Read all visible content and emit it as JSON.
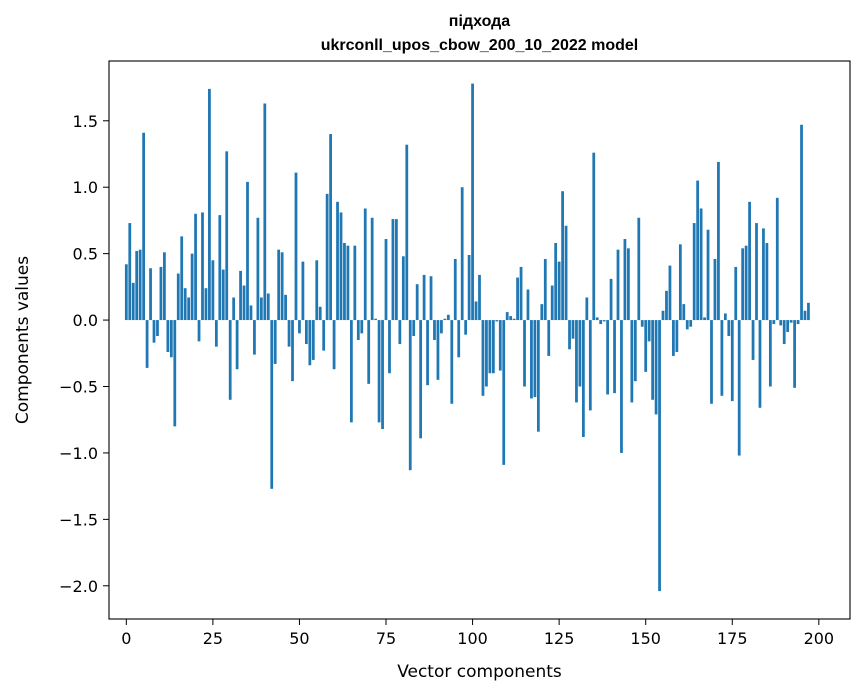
{
  "chart_data": {
    "type": "bar",
    "title": "підхода",
    "subtitle": "ukrconll_upos_cbow_200_10_2022 model",
    "xlabel": "Vector components",
    "ylabel": "Components values",
    "xlim": [
      -5,
      209
    ],
    "ylim": [
      -2.25,
      1.95
    ],
    "xticks": [
      0,
      25,
      50,
      75,
      100,
      125,
      150,
      175,
      200
    ],
    "yticks": [
      -2.0,
      -1.5,
      -1.0,
      -0.5,
      0.0,
      0.5,
      1.0,
      1.5
    ],
    "ytick_labels": [
      "−2.0",
      "−1.5",
      "−1.0",
      "−0.5",
      "0.0",
      "0.5",
      "1.0",
      "1.5"
    ],
    "grid": false,
    "bar_color": "#1f77b4",
    "values": [
      0.42,
      0.73,
      0.28,
      0.52,
      0.53,
      1.41,
      -0.36,
      0.39,
      -0.17,
      -0.12,
      0.4,
      0.51,
      -0.24,
      -0.28,
      -0.8,
      0.35,
      0.63,
      0.24,
      0.17,
      0.5,
      0.8,
      -0.16,
      0.81,
      0.24,
      1.74,
      0.45,
      -0.2,
      0.79,
      0.38,
      1.27,
      -0.6,
      0.17,
      -0.37,
      0.37,
      0.26,
      1.04,
      0.11,
      -0.26,
      0.77,
      0.17,
      1.63,
      0.2,
      -1.27,
      -0.33,
      0.53,
      0.51,
      0.19,
      -0.2,
      -0.46,
      1.11,
      -0.1,
      0.44,
      -0.18,
      -0.34,
      -0.3,
      0.45,
      0.1,
      -0.23,
      0.95,
      1.4,
      -0.37,
      0.89,
      0.81,
      0.58,
      0.56,
      -0.77,
      0.56,
      -0.15,
      -0.1,
      0.84,
      -0.48,
      0.77,
      0.01,
      -0.77,
      -0.82,
      0.61,
      -0.4,
      0.76,
      0.76,
      -0.18,
      0.48,
      1.32,
      -1.13,
      -0.12,
      0.27,
      -0.89,
      0.34,
      -0.49,
      0.33,
      -0.15,
      -0.45,
      -0.1,
      0.01,
      0.04,
      -0.63,
      0.46,
      -0.28,
      1.0,
      -0.11,
      0.49,
      1.78,
      0.14,
      0.34,
      -0.57,
      -0.5,
      -0.4,
      -0.4,
      -0.01,
      -0.38,
      -1.09,
      0.06,
      0.03,
      0.01,
      0.32,
      0.4,
      -0.5,
      0.23,
      -0.59,
      -0.58,
      -0.84,
      0.12,
      0.46,
      -0.27,
      0.26,
      0.58,
      0.44,
      0.97,
      0.71,
      -0.22,
      -0.14,
      -0.62,
      -0.5,
      -0.88,
      0.17,
      -0.68,
      1.26,
      0.02,
      -0.03,
      -0.01,
      -0.56,
      0.31,
      -0.55,
      0.53,
      -1.0,
      0.61,
      0.54,
      -0.62,
      -0.46,
      0.77,
      -0.05,
      -0.39,
      -0.16,
      -0.6,
      -0.71,
      -2.04,
      0.07,
      0.22,
      0.41,
      -0.27,
      -0.24,
      0.57,
      0.12,
      -0.07,
      -0.05,
      0.73,
      1.05,
      0.84,
      0.02,
      0.68,
      -0.63,
      0.46,
      1.19,
      -0.57,
      0.05,
      -0.12,
      -0.61,
      0.4,
      -1.02,
      0.54,
      0.56,
      0.89,
      -0.3,
      0.73,
      -0.66,
      0.69,
      0.58,
      -0.5,
      -0.03,
      0.92,
      -0.04,
      -0.18,
      -0.09,
      -0.02,
      -0.51,
      -0.03,
      1.47,
      0.07,
      0.13
    ]
  }
}
